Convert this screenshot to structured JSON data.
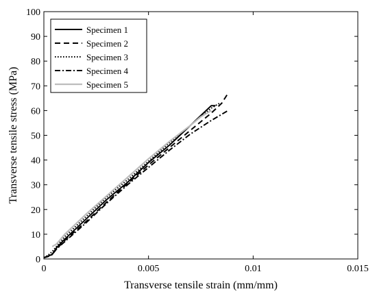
{
  "chart_data": {
    "type": "line",
    "title": "",
    "xlabel": "Transverse tensile strain (mm/mm)",
    "ylabel": "Transverse tensile stress (MPa)",
    "xlim": [
      0,
      0.015
    ],
    "ylim": [
      0,
      100
    ],
    "xticks": [
      0,
      0.005,
      0.01,
      0.015
    ],
    "xtick_labels": [
      "0",
      "0.005",
      "0.01",
      "0.015"
    ],
    "yticks": [
      0,
      10,
      20,
      30,
      40,
      50,
      60,
      70,
      80,
      90,
      100
    ],
    "ytick_labels": [
      "0",
      "10",
      "20",
      "30",
      "40",
      "50",
      "60",
      "70",
      "80",
      "90",
      "100"
    ],
    "grid": false,
    "legend_position": "top-left",
    "series": [
      {
        "name": "Specimen 1",
        "color": "#000000",
        "style": "solid",
        "x": [
          0,
          0.0002,
          0.0004,
          0.0006,
          0.001,
          0.002,
          0.003,
          0.004,
          0.005,
          0.006,
          0.007,
          0.0075,
          0.008,
          0.0082
        ],
        "y": [
          0.5,
          1.2,
          1.8,
          4.5,
          8,
          16,
          24,
          31,
          39,
          46,
          54,
          58,
          62,
          62
        ]
      },
      {
        "name": "Specimen 2",
        "color": "#000000",
        "style": "dashed",
        "x": [
          0,
          0.0002,
          0.0004,
          0.0006,
          0.001,
          0.002,
          0.003,
          0.004,
          0.005,
          0.006,
          0.007,
          0.008,
          0.0085,
          0.0088
        ],
        "y": [
          0.5,
          1,
          2,
          4,
          7.5,
          15,
          23,
          30.5,
          38,
          45,
          52,
          59,
          63,
          67
        ]
      },
      {
        "name": "Specimen 3",
        "color": "#000000",
        "style": "dotted",
        "x": [
          0,
          0.0002,
          0.0004,
          0.0006,
          0.001,
          0.002,
          0.003,
          0.004,
          0.005,
          0.006,
          0.007,
          0.0075,
          0.008,
          0.0084
        ],
        "y": [
          0.5,
          1.5,
          3,
          5,
          9,
          17,
          25,
          32,
          39.5,
          47,
          54,
          57.5,
          61,
          63
        ]
      },
      {
        "name": "Specimen 4",
        "color": "#000000",
        "style": "dashdot",
        "x": [
          0,
          0.0002,
          0.0004,
          0.0006,
          0.001,
          0.002,
          0.003,
          0.004,
          0.005,
          0.006,
          0.007,
          0.008,
          0.0085,
          0.0088
        ],
        "y": [
          0.5,
          1,
          1.8,
          4,
          7,
          14.5,
          22.5,
          30,
          37,
          44,
          50.5,
          56,
          58.5,
          60
        ]
      },
      {
        "name": "Specimen 5",
        "color": "#bdbdbd",
        "style": "solid",
        "x": [
          0.0004,
          0.0006,
          0.001,
          0.0015,
          0.002,
          0.003,
          0.004,
          0.005,
          0.006,
          0.007,
          0.0075,
          0.008
        ],
        "y": [
          5,
          6,
          10,
          14,
          18,
          25.5,
          33,
          40.5,
          47.5,
          54,
          57.5,
          60
        ]
      }
    ]
  }
}
